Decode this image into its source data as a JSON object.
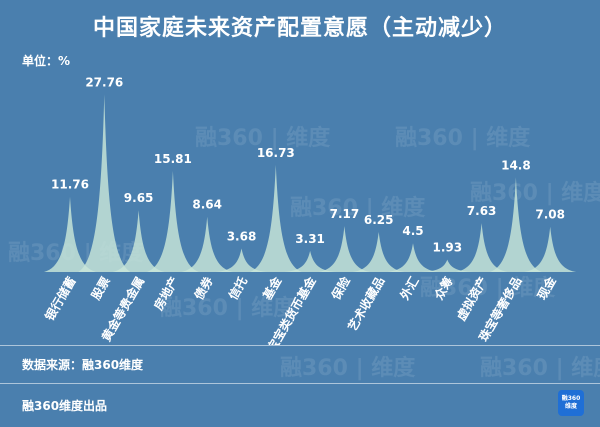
{
  "header": {
    "title": "中国家庭未来资产配置意愿（主动减少）",
    "unit_label": "单位：%"
  },
  "footer": {
    "source": "数据来源：融360维度",
    "producer": "融360维度出品",
    "logo_line1": "融360",
    "logo_line2": "维度"
  },
  "watermark": {
    "text": "融360 | 维度"
  },
  "colors": {
    "background": "#4a7fae",
    "peak_fill": "#c9e6d9",
    "text": "#ffffff"
  },
  "chart_data": {
    "type": "area",
    "title": "中国家庭未来资产配置意愿（主动减少）",
    "unit": "%",
    "categories": [
      "银行储蓄",
      "股票",
      "黄金等贵金属",
      "房地产",
      "债券",
      "信托",
      "基金",
      "宝宝类货币基金",
      "保险",
      "艺术收藏品",
      "外汇",
      "众筹",
      "虚拟资产",
      "珠宝等奢侈品",
      "现金"
    ],
    "values": [
      11.76,
      27.76,
      9.65,
      15.81,
      8.64,
      3.68,
      16.73,
      3.31,
      7.17,
      6.25,
      4.5,
      1.93,
      7.63,
      14.8,
      7.08
    ],
    "value_labels": [
      "11.76",
      "27.76",
      "9.65",
      "15.81",
      "8.64",
      "3.68",
      "16.73",
      "3.31",
      "7.17",
      "6.25",
      "4.5",
      "1.93",
      "7.63",
      "14.8",
      "7.08"
    ],
    "ylim": [
      0,
      30
    ],
    "grid": false,
    "legend": "none"
  }
}
